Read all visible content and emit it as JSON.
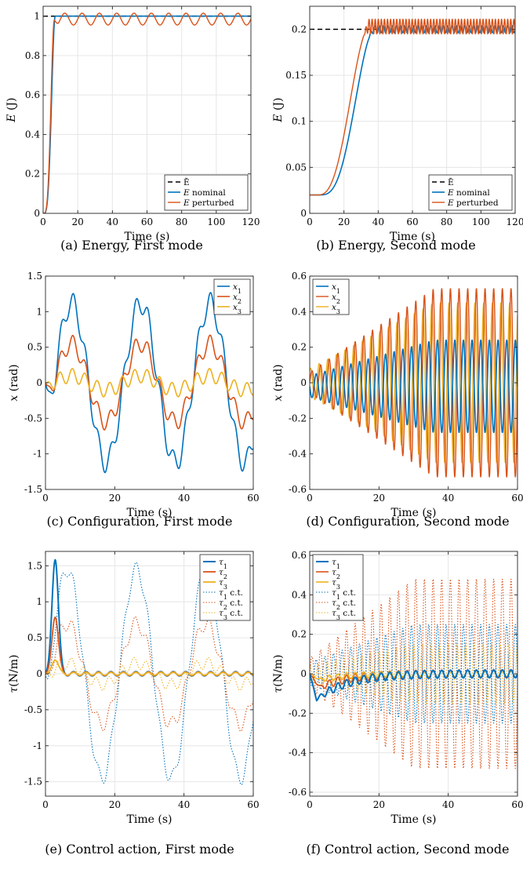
{
  "chart_data": [
    {
      "id": "a",
      "type": "line",
      "caption": "(a) Energy, First mode",
      "xlabel": "Time (s)",
      "ylabel": "E (J)",
      "xlim": [
        0,
        120
      ],
      "ylim": [
        0,
        1.05
      ],
      "xticks": [
        0,
        20,
        40,
        60,
        80,
        100,
        120
      ],
      "yticks": [
        0,
        0.2,
        0.4,
        0.6,
        0.8,
        1
      ],
      "grid": true,
      "legend_position": "bottom-right",
      "series": [
        {
          "name": "Ē",
          "label_rich": [
            "",
            "Ē"
          ],
          "color": "#000000",
          "dash": "6,4",
          "width": 1.5,
          "points": [
            [
              0,
              1
            ],
            [
              120,
              1
            ]
          ]
        },
        {
          "name": "E nominal",
          "label_rich": [
            "E",
            " nominal"
          ],
          "color": "#0072BD",
          "width": 1.6,
          "gen": {
            "kind": "rise",
            "y0": 0,
            "yf": 1,
            "t0": 0,
            "t1": 7,
            "p": 2.2,
            "amp": 0,
            "per": 10,
            "tmax": 120,
            "dt": 0.1
          }
        },
        {
          "name": "E perturbed",
          "label_rich": [
            "E",
            " perturbed"
          ],
          "color": "#D95319",
          "width": 1.4,
          "gen": {
            "kind": "rise",
            "y0": 0,
            "yf": 0.985,
            "t0": 0,
            "t1": 6.5,
            "p": 2.2,
            "amp": 0.03,
            "per": 10,
            "tmax": 120,
            "dt": 0.1
          }
        }
      ]
    },
    {
      "id": "b",
      "type": "line",
      "caption": "(b) Energy, Second mode",
      "xlabel": "Time (s)",
      "ylabel": "E (J)",
      "xlim": [
        0,
        120
      ],
      "ylim": [
        0,
        0.225
      ],
      "xticks": [
        0,
        20,
        40,
        60,
        80,
        100,
        120
      ],
      "yticks": [
        0,
        0.05,
        0.1,
        0.15,
        0.2
      ],
      "grid": true,
      "legend_position": "bottom-right",
      "series": [
        {
          "name": "Ē",
          "label_rich": [
            "",
            "Ē"
          ],
          "color": "#000000",
          "dash": "6,4",
          "width": 1.5,
          "points": [
            [
              0,
              0.2
            ],
            [
              40,
              0.2
            ]
          ]
        },
        {
          "name": "E nominal",
          "label_rich": [
            "E",
            " nominal"
          ],
          "color": "#0072BD",
          "width": 1.6,
          "gen": {
            "kind": "rise",
            "y0": 0.02,
            "yf": 0.2,
            "t0": 5,
            "t1": 38,
            "p": 1.8,
            "amp": 0.004,
            "per": 2.5,
            "tmax": 120,
            "dt": 0.25
          }
        },
        {
          "name": "E perturbed",
          "label_rich": [
            "E",
            " perturbed"
          ],
          "color": "#D95319",
          "width": 1.4,
          "gen": {
            "kind": "rise",
            "y0": 0.02,
            "yf": 0.203,
            "t0": 4,
            "t1": 35,
            "p": 1.6,
            "amp": 0.008,
            "per": 1.8,
            "tmax": 120,
            "dt": 0.15
          }
        }
      ]
    },
    {
      "id": "c",
      "type": "line",
      "caption": "(c) Configuration, First mode",
      "xlabel": "Time (s)",
      "ylabel": "x (rad)",
      "xlim": [
        0,
        60
      ],
      "ylim": [
        -1.5,
        1.5
      ],
      "xticks": [
        0,
        20,
        40,
        60
      ],
      "yticks": [
        -1.5,
        -1,
        -0.5,
        0,
        0.5,
        1,
        1.5
      ],
      "grid": false,
      "legend_position": "top-right",
      "series": [
        {
          "name": "x1",
          "label_rich": [
            "x",
            "",
            "1"
          ],
          "color": "#0072BD",
          "width": 1.6,
          "gen": {
            "kind": "osc",
            "A": 1.12,
            "per": 20,
            "phase": 2.5,
            "A2": 0.15,
            "per2": 3.6,
            "phase2": 0,
            "ramp": 3,
            "off": 0,
            "tmax": 60,
            "dt": 0.1
          }
        },
        {
          "name": "x2",
          "label_rich": [
            "x",
            "",
            "2"
          ],
          "color": "#D95319",
          "width": 1.6,
          "gen": {
            "kind": "osc",
            "A": 0.55,
            "per": 20,
            "phase": 2.5,
            "A2": 0.12,
            "per2": 3.6,
            "phase2": 0.3,
            "ramp": 3,
            "off": 0,
            "tmax": 60,
            "dt": 0.1
          }
        },
        {
          "name": "x3",
          "label_rich": [
            "x",
            "",
            "3"
          ],
          "color": "#EDB120",
          "width": 1.6,
          "gen": {
            "kind": "osc",
            "A": 0.1,
            "per": 20,
            "phase": 2.5,
            "A2": 0.1,
            "per2": 3.6,
            "phase2": 0.6,
            "ramp": 3,
            "off": 0,
            "tmax": 60,
            "dt": 0.1
          }
        }
      ]
    },
    {
      "id": "d",
      "type": "line",
      "caption": "(d) Configuration, Second mode",
      "xlabel": "Time (s)",
      "ylabel": "x (rad)",
      "xlim": [
        0,
        60
      ],
      "ylim": [
        -0.6,
        0.6
      ],
      "xticks": [
        0,
        20,
        40,
        60
      ],
      "yticks": [
        -0.6,
        -0.4,
        -0.2,
        0,
        0.2,
        0.4,
        0.6
      ],
      "grid": false,
      "legend_position": "top-left",
      "series": [
        {
          "name": "x3",
          "label_rich": [
            "x",
            "",
            "3"
          ],
          "color": "#EDB120",
          "width": 1.4,
          "gen": {
            "kind": "grow",
            "A0": 0.08,
            "Af": 0.45,
            "tr": 36,
            "per": 2.5,
            "phase": 1.0,
            "off": 0,
            "tmax": 60,
            "dt": 0.05
          }
        },
        {
          "name": "x2",
          "label_rich": [
            "x",
            "",
            "2"
          ],
          "color": "#D95319",
          "width": 1.4,
          "gen": {
            "kind": "grow",
            "A0": 0.06,
            "Af": 0.53,
            "tr": 36,
            "per": 2.5,
            "phase": 0.0,
            "off": 0,
            "tmax": 60,
            "dt": 0.05
          }
        },
        {
          "name": "x1",
          "label_rich": [
            "x",
            "",
            "1"
          ],
          "color": "#0072BD",
          "width": 1.6,
          "gen": {
            "kind": "grow",
            "A0": 0.06,
            "Af": 0.26,
            "tr": 36,
            "per": 2.5,
            "phase": 3.14,
            "off": -0.02,
            "tmax": 60,
            "dt": 0.05
          }
        }
      ]
    },
    {
      "id": "e",
      "type": "line",
      "caption": "(e) Control action, First mode",
      "xlabel": "Time (s)",
      "ylabel": "τ(N/m)",
      "xlim": [
        0,
        60
      ],
      "ylim": [
        -1.7,
        1.7
      ],
      "xticks": [
        0,
        20,
        40,
        60
      ],
      "yticks": [
        -1.5,
        -1,
        -0.5,
        0,
        0.5,
        1,
        1.5
      ],
      "grid": true,
      "legend_position": "top-right",
      "series": [
        {
          "name": "τ1 c.t.",
          "label_rich": [
            "τ",
            "",
            "1",
            " c.t."
          ],
          "color": "#0072BD",
          "dash": "1.5,2",
          "width": 1.1,
          "gen": {
            "kind": "osc",
            "A": 1.45,
            "per": 20,
            "phase": 1.3,
            "A2": 0.1,
            "per2": 3.6,
            "phase2": 0,
            "ramp": 2,
            "off": 0,
            "tmax": 60,
            "dt": 0.1
          }
        },
        {
          "name": "τ2 c.t.",
          "label_rich": [
            "τ",
            "",
            "2",
            " c.t."
          ],
          "color": "#D95319",
          "dash": "1.5,2",
          "width": 1.1,
          "gen": {
            "kind": "osc",
            "A": 0.7,
            "per": 20,
            "phase": 1.3,
            "A2": 0.1,
            "per2": 3.6,
            "phase2": 0.5,
            "ramp": 2,
            "off": 0,
            "tmax": 60,
            "dt": 0.1
          }
        },
        {
          "name": "τ3 c.t.",
          "label_rich": [
            "τ",
            "",
            "3",
            " c.t."
          ],
          "color": "#EDB120",
          "dash": "1.5,2",
          "width": 1.1,
          "gen": {
            "kind": "osc",
            "A": 0.15,
            "per": 20,
            "phase": 1.3,
            "A2": 0.08,
            "per2": 3.6,
            "phase2": 1.0,
            "ramp": 2,
            "off": 0,
            "tmax": 60,
            "dt": 0.1
          }
        },
        {
          "name": "τ1",
          "label_rich": [
            "τ",
            "",
            "1"
          ],
          "color": "#0072BD",
          "width": 2,
          "gen": {
            "kind": "pulse",
            "peak": 1.6,
            "tp": 2.8,
            "w": 1.3,
            "a": 0.03,
            "per": 3.6,
            "tmax": 60,
            "dt": 0.1
          }
        },
        {
          "name": "τ2",
          "label_rich": [
            "τ",
            "",
            "2"
          ],
          "color": "#D95319",
          "width": 1.8,
          "gen": {
            "kind": "pulse",
            "peak": 0.8,
            "tp": 2.8,
            "w": 1.3,
            "a": 0.025,
            "per": 3.6,
            "tmax": 60,
            "dt": 0.1
          }
        },
        {
          "name": "τ3",
          "label_rich": [
            "τ",
            "",
            "3"
          ],
          "color": "#EDB120",
          "width": 1.8,
          "gen": {
            "kind": "pulse",
            "peak": 0.2,
            "tp": 2.8,
            "w": 1.3,
            "a": 0.02,
            "per": 3.6,
            "tmax": 60,
            "dt": 0.1
          }
        }
      ]
    },
    {
      "id": "f",
      "type": "line",
      "caption": "(f) Control action, Second mode",
      "xlabel": "Time (s)",
      "ylabel": "τ(N/m)",
      "xlim": [
        0,
        60
      ],
      "ylim": [
        -0.62,
        0.62
      ],
      "xticks": [
        0,
        20,
        40,
        60
      ],
      "yticks": [
        -0.6,
        -0.4,
        -0.2,
        0,
        0.2,
        0.4,
        0.6
      ],
      "grid": true,
      "legend_position": "top-left",
      "series": [
        {
          "name": "τ2 c.t.",
          "label_rich": [
            "τ",
            "",
            "2",
            " c.t."
          ],
          "color": "#D95319",
          "dash": "1.5,2",
          "width": 1.1,
          "gen": {
            "kind": "grow",
            "A0": 0.08,
            "Af": 0.48,
            "tr": 30,
            "per": 2.5,
            "phase": 0,
            "off": 0,
            "tmax": 60,
            "dt": 0.05
          }
        },
        {
          "name": "τ1 c.t.",
          "label_rich": [
            "τ",
            "",
            "1",
            " c.t."
          ],
          "color": "#0072BD",
          "dash": "1.5,2",
          "width": 1.1,
          "gen": {
            "kind": "grow",
            "A0": 0.06,
            "Af": 0.25,
            "tr": 30,
            "per": 2.5,
            "phase": 3.14,
            "off": 0,
            "tmax": 60,
            "dt": 0.05
          }
        },
        {
          "name": "τ3 c.t.",
          "label_rich": [
            "τ",
            "",
            "3",
            " c.t."
          ],
          "color": "#EDB120",
          "dash": "1.5,2",
          "width": 1.1,
          "gen": {
            "kind": "grow",
            "A0": 0.04,
            "Af": 0.15,
            "tr": 30,
            "per": 2.5,
            "phase": 1.5,
            "off": 0,
            "tmax": 60,
            "dt": 0.05
          }
        },
        {
          "name": "τ2",
          "label_rich": [
            "τ",
            "",
            "2"
          ],
          "color": "#D95319",
          "width": 1.6,
          "gen": {
            "kind": "dip",
            "d": 0.07,
            "tmin": 3,
            "tdec": 8,
            "a": 0.02,
            "per": 2.5,
            "tmax": 60,
            "dt": 0.05
          }
        },
        {
          "name": "τ3",
          "label_rich": [
            "τ",
            "",
            "3"
          ],
          "color": "#EDB120",
          "width": 1.6,
          "gen": {
            "kind": "dip",
            "d": 0.03,
            "tmin": 3,
            "tdec": 8,
            "a": 0.015,
            "per": 2.5,
            "tmax": 60,
            "dt": 0.05
          }
        },
        {
          "name": "τ1",
          "label_rich": [
            "τ",
            "",
            "1"
          ],
          "color": "#0072BD",
          "width": 2,
          "gen": {
            "kind": "dip",
            "d": 0.13,
            "tmin": 2,
            "tdec": 9,
            "a": 0.02,
            "per": 2.5,
            "tmax": 60,
            "dt": 0.05
          }
        }
      ]
    }
  ]
}
